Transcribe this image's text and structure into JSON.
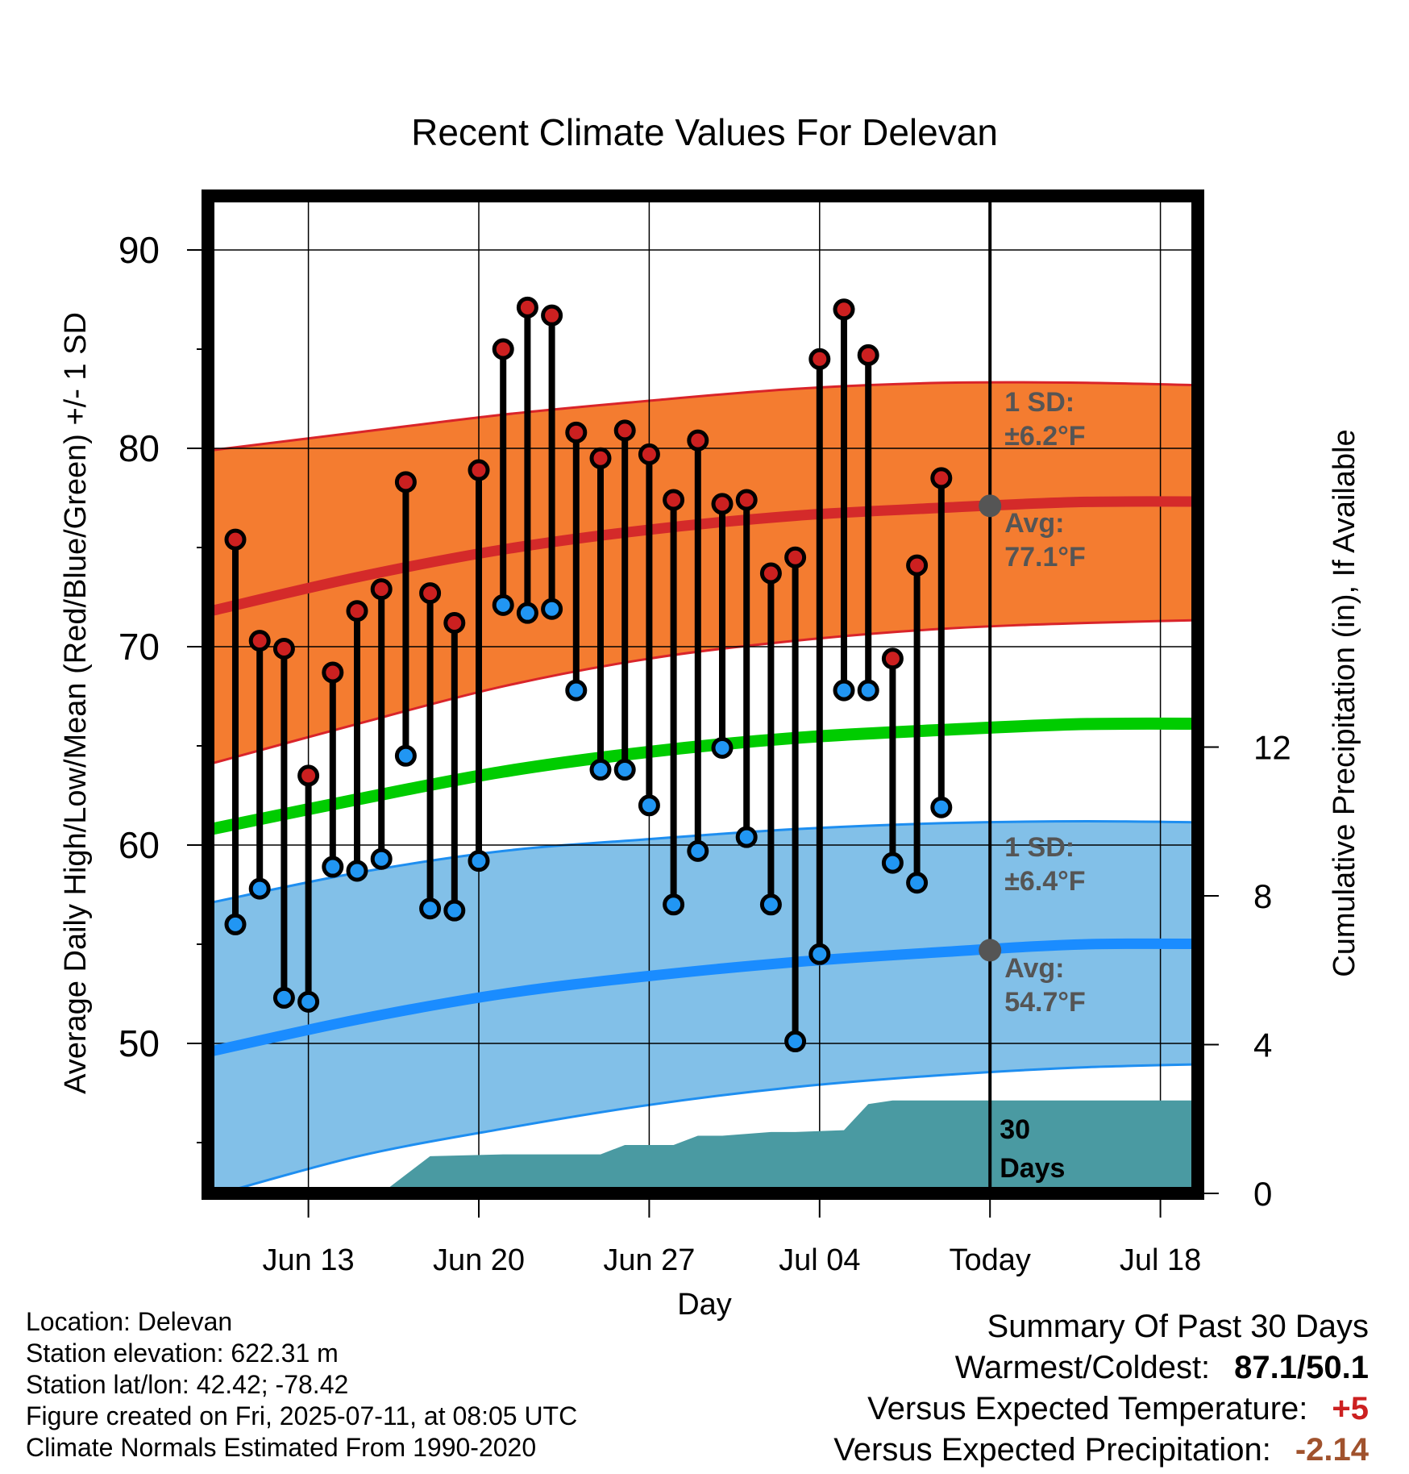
{
  "chart_data": {
    "type": "line",
    "title": "Recent Climate Values For Delevan",
    "xlabel": "Day",
    "ylabel": "Average Daily High/Low/Mean (Red/Blue/Green) +/- 1 SD",
    "y2label": "Cumulative Precipitation (in), If Available",
    "ylim": [
      42,
      92
    ],
    "y2lim": [
      0,
      24
    ],
    "yticks": [
      50,
      60,
      70,
      80,
      90
    ],
    "y2ticks": [
      0,
      4,
      8,
      12
    ],
    "grid": true,
    "xlim": [
      "2025-06-09",
      "2025-07-22"
    ],
    "xticks": [
      {
        "date": "2025-06-13",
        "label": "Jun 13"
      },
      {
        "date": "2025-06-20",
        "label": "Jun 20"
      },
      {
        "date": "2025-06-27",
        "label": "Jun 27"
      },
      {
        "date": "2025-07-04",
        "label": "Jul 04"
      },
      {
        "date": "2025-07-11",
        "label": "Today"
      },
      {
        "date": "2025-07-18",
        "label": "Jul 18"
      }
    ],
    "today": "2025-07-11",
    "window_label": "30 Days",
    "colors": {
      "high_band": "#f47c30",
      "high_band_edge": "#d9242a",
      "high_avg": "#d42a2a",
      "low_band": "#82c0e8",
      "low_band_edge": "#1e8ef0",
      "low_avg": "#1a8cff",
      "mean": "#00cc00",
      "precip": "#4a9aa2",
      "high_marker": "#cc2020",
      "low_marker": "#2196f3",
      "today_marker": "#555555",
      "annotation_text": "#555555"
    },
    "normals": {
      "dates": [
        "2025-06-09",
        "2025-06-15",
        "2025-06-21",
        "2025-06-27",
        "2025-07-03",
        "2025-07-09",
        "2025-07-15",
        "2025-07-22"
      ],
      "high_mean": [
        71.8,
        73.5,
        74.9,
        75.9,
        76.6,
        77.0,
        77.3,
        77.3
      ],
      "high_sd_upper": [
        79.9,
        80.8,
        81.7,
        82.4,
        83.0,
        83.3,
        83.3,
        83.1
      ],
      "high_sd_lower": [
        64.1,
        66.1,
        68.0,
        69.4,
        70.3,
        70.9,
        71.2,
        71.4
      ],
      "low_mean": [
        49.6,
        51.2,
        52.5,
        53.4,
        54.1,
        54.6,
        55.0,
        55.0
      ],
      "low_sd_upper": [
        57.1,
        58.6,
        59.7,
        60.3,
        60.8,
        61.1,
        61.2,
        61.1
      ],
      "low_sd_lower": [
        42.3,
        44.3,
        45.7,
        46.9,
        47.8,
        48.4,
        48.8,
        49.0
      ],
      "daily_mean": [
        60.8,
        62.3,
        63.7,
        64.7,
        65.4,
        65.8,
        66.1,
        66.1
      ]
    },
    "series": [
      {
        "name": "High",
        "x": [
          "2025-06-10",
          "2025-06-11",
          "2025-06-12",
          "2025-06-13",
          "2025-06-14",
          "2025-06-15",
          "2025-06-16",
          "2025-06-17",
          "2025-06-18",
          "2025-06-19",
          "2025-06-20",
          "2025-06-21",
          "2025-06-22",
          "2025-06-23",
          "2025-06-24",
          "2025-06-25",
          "2025-06-26",
          "2025-06-27",
          "2025-06-28",
          "2025-06-29",
          "2025-06-30",
          "2025-07-01",
          "2025-07-02",
          "2025-07-03",
          "2025-07-04",
          "2025-07-05",
          "2025-07-06",
          "2025-07-07",
          "2025-07-08",
          "2025-07-09",
          "2025-07-10"
        ],
        "values": [
          75.4,
          70.3,
          69.9,
          63.5,
          68.7,
          71.8,
          72.9,
          78.3,
          72.7,
          71.2,
          78.9,
          85.0,
          87.1,
          86.7,
          80.8,
          79.5,
          80.9,
          79.7,
          77.4,
          80.4,
          77.2,
          77.4,
          73.7,
          74.5,
          84.5,
          87.0,
          84.7,
          69.4,
          74.1,
          78.5,
          null
        ]
      },
      {
        "name": "Low",
        "x": [
          "2025-06-10",
          "2025-06-11",
          "2025-06-12",
          "2025-06-13",
          "2025-06-14",
          "2025-06-15",
          "2025-06-16",
          "2025-06-17",
          "2025-06-18",
          "2025-06-19",
          "2025-06-20",
          "2025-06-21",
          "2025-06-22",
          "2025-06-23",
          "2025-06-24",
          "2025-06-25",
          "2025-06-26",
          "2025-06-27",
          "2025-06-28",
          "2025-06-29",
          "2025-06-30",
          "2025-07-01",
          "2025-07-02",
          "2025-07-03",
          "2025-07-04",
          "2025-07-05",
          "2025-07-06",
          "2025-07-07",
          "2025-07-08",
          "2025-07-09",
          "2025-07-10"
        ],
        "values": [
          56.0,
          57.8,
          52.3,
          52.1,
          58.9,
          58.7,
          59.3,
          64.5,
          56.8,
          56.7,
          59.2,
          72.1,
          71.7,
          71.9,
          67.8,
          63.8,
          63.8,
          62.0,
          57.0,
          59.7,
          64.9,
          60.4,
          57.0,
          50.1,
          54.5,
          67.8,
          67.8,
          59.1,
          58.1,
          61.9,
          null
        ]
      },
      {
        "name": "Precipitation",
        "x": [
          "2025-06-16",
          "2025-06-17",
          "2025-06-18",
          "2025-06-21",
          "2025-06-25",
          "2025-06-26",
          "2025-06-28",
          "2025-06-29",
          "2025-06-30",
          "2025-07-02",
          "2025-07-03",
          "2025-07-05",
          "2025-07-06",
          "2025-07-07",
          "2025-07-22"
        ],
        "values": [
          0.0,
          0.5,
          1.0,
          1.05,
          1.05,
          1.3,
          1.3,
          1.55,
          1.55,
          1.65,
          1.65,
          1.7,
          2.4,
          2.5,
          2.5
        ]
      }
    ],
    "annotations": {
      "high_sd_label": "1 SD:",
      "high_sd_value": "±6.2°F",
      "high_avg_label": "Avg:",
      "high_avg_value": "77.1°F",
      "high_today": 77.1,
      "low_sd_label": "1 SD:",
      "low_sd_value": "±6.4°F",
      "low_avg_label": "Avg:",
      "low_avg_value": "54.7°F",
      "low_today": 54.7
    }
  },
  "info": {
    "location": "Location: Delevan",
    "elevation": "Station elevation: 622.31 m",
    "latlon": "Station lat/lon: 42.42; -78.42",
    "created": "Figure created on Fri, 2025-07-11, at 08:05 UTC",
    "normals": "Climate Normals Estimated From 1990-2020"
  },
  "summary": {
    "title": "Summary Of Past 30 Days",
    "warm_cold_label": "Warmest/Coldest:",
    "warm_cold_value": "87.1/50.1",
    "temp_label": "Versus Expected Temperature:",
    "temp_value": "+5",
    "temp_color": "#cc2020",
    "precip_label": "Versus Expected Precipitation:",
    "precip_value": "-2.14",
    "precip_color": "#a0522d"
  }
}
